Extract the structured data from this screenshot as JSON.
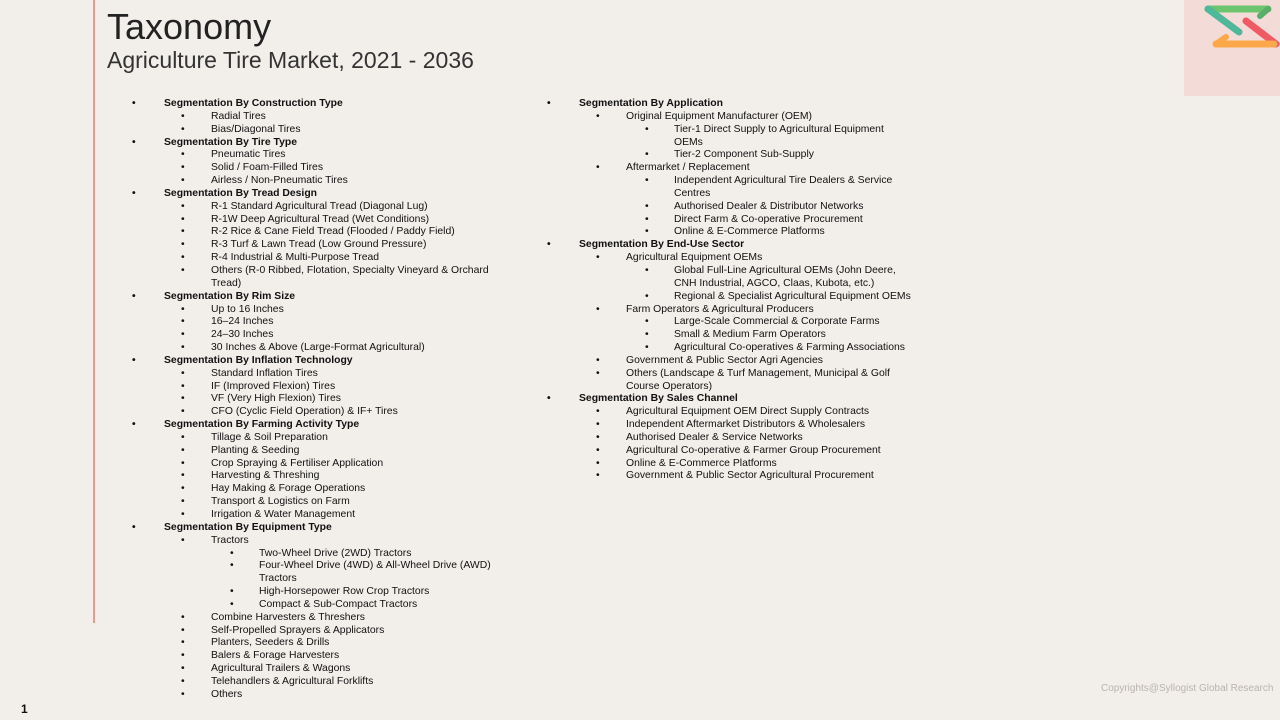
{
  "header": {
    "title": "Taxonomy",
    "subtitle": "Agriculture Tire Market, 2021 - 2036"
  },
  "colors": {
    "accent_line": "#e79a8c",
    "logo_box": "#f3dcd7",
    "logo_green": "#6cc46e",
    "logo_teal": "#4fb89a",
    "logo_red": "#f05a62",
    "logo_orange": "#fba74a"
  },
  "left_column": [
    {
      "label": "Segmentation By Construction Type",
      "children": [
        {
          "label": "Radial Tires"
        },
        {
          "label": "Bias/Diagonal Tires"
        }
      ]
    },
    {
      "label": "Segmentation By Tire Type",
      "children": [
        {
          "label": "Pneumatic Tires"
        },
        {
          "label": "Solid / Foam-Filled Tires"
        },
        {
          "label": "Airless / Non-Pneumatic Tires"
        }
      ]
    },
    {
      "label": "Segmentation By Tread Design",
      "children": [
        {
          "label": "R-1 Standard Agricultural Tread (Diagonal Lug)"
        },
        {
          "label": "R-1W Deep Agricultural Tread (Wet Conditions)"
        },
        {
          "label": "R-2 Rice & Cane Field Tread (Flooded / Paddy Field)"
        },
        {
          "label": "R-3 Turf & Lawn Tread (Low Ground Pressure)"
        },
        {
          "label": "R-4 Industrial & Multi-Purpose Tread"
        },
        {
          "label": "Others (R-0 Ribbed, Flotation, Specialty Vineyard & Orchard Tread)"
        }
      ]
    },
    {
      "label": "Segmentation By Rim Size",
      "children": [
        {
          "label": "Up to 16 Inches"
        },
        {
          "label": "16–24 Inches"
        },
        {
          "label": "24–30 Inches"
        },
        {
          "label": "30 Inches & Above (Large-Format Agricultural)"
        }
      ]
    },
    {
      "label": "Segmentation By Inflation Technology",
      "children": [
        {
          "label": "Standard Inflation Tires"
        },
        {
          "label": "IF (Improved Flexion) Tires"
        },
        {
          "label": "VF (Very High Flexion) Tires"
        },
        {
          "label": "CFO (Cyclic Field Operation) & IF+ Tires"
        }
      ]
    },
    {
      "label": "Segmentation By Farming Activity Type",
      "children": [
        {
          "label": "Tillage & Soil Preparation"
        },
        {
          "label": "Planting & Seeding"
        },
        {
          "label": "Crop Spraying & Fertiliser Application"
        },
        {
          "label": "Harvesting & Threshing"
        },
        {
          "label": "Hay Making & Forage Operations"
        },
        {
          "label": "Transport & Logistics on Farm"
        },
        {
          "label": "Irrigation & Water Management"
        }
      ]
    },
    {
      "label": "Segmentation By Equipment Type",
      "children": [
        {
          "label": "Tractors",
          "children": [
            {
              "label": "Two-Wheel Drive (2WD) Tractors"
            },
            {
              "label": "Four-Wheel Drive (4WD) & All-Wheel Drive (AWD) Tractors"
            },
            {
              "label": "High-Horsepower Row Crop Tractors"
            },
            {
              "label": "Compact & Sub-Compact Tractors"
            }
          ]
        },
        {
          "label": "Combine Harvesters & Threshers"
        },
        {
          "label": "Self-Propelled Sprayers & Applicators"
        },
        {
          "label": "Planters, Seeders & Drills"
        },
        {
          "label": "Balers & Forage Harvesters"
        },
        {
          "label": "Agricultural Trailers & Wagons"
        },
        {
          "label": "Telehandlers & Agricultural Forklifts"
        },
        {
          "label": "Others"
        }
      ]
    }
  ],
  "right_column": [
    {
      "label": "Segmentation By Application",
      "children": [
        {
          "label": "Original Equipment Manufacturer (OEM)",
          "children": [
            {
              "label": "Tier-1 Direct Supply to Agricultural Equipment OEMs"
            },
            {
              "label": "Tier-2 Component Sub-Supply"
            }
          ]
        },
        {
          "label": "Aftermarket / Replacement",
          "children": [
            {
              "label": "Independent Agricultural Tire Dealers & Service Centres"
            },
            {
              "label": "Authorised Dealer & Distributor Networks"
            },
            {
              "label": "Direct Farm & Co-operative Procurement"
            },
            {
              "label": "Online & E-Commerce Platforms"
            }
          ]
        }
      ]
    },
    {
      "label": "Segmentation By End-Use Sector",
      "children": [
        {
          "label": "Agricultural Equipment OEMs",
          "children": [
            {
              "label": "Global Full-Line Agricultural OEMs (John Deere, CNH Industrial, AGCO, Claas, Kubota, etc.)"
            },
            {
              "label": "Regional & Specialist Agricultural Equipment OEMs"
            }
          ]
        },
        {
          "label": "Farm Operators & Agricultural Producers",
          "children": [
            {
              "label": "Large-Scale Commercial & Corporate Farms"
            },
            {
              "label": "Small & Medium Farm Operators"
            },
            {
              "label": "Agricultural Co-operatives & Farming Associations"
            }
          ]
        },
        {
          "label": "Government & Public Sector Agri Agencies"
        },
        {
          "label": "Others (Landscape & Turf Management, Municipal & Golf Course Operators)"
        }
      ]
    },
    {
      "label": "Segmentation By Sales Channel",
      "children": [
        {
          "label": "Agricultural Equipment OEM Direct Supply Contracts"
        },
        {
          "label": "Independent Aftermarket Distributors & Wholesalers"
        },
        {
          "label": "Authorised Dealer & Service Networks"
        },
        {
          "label": "Agricultural Co-operative & Farmer Group Procurement"
        },
        {
          "label": "Online & E-Commerce Platforms"
        },
        {
          "label": "Government & Public Sector Agricultural Procurement"
        }
      ]
    }
  ],
  "footer": {
    "page_number": "1",
    "copyright": "Copyrights@Syllogist Global Research"
  }
}
